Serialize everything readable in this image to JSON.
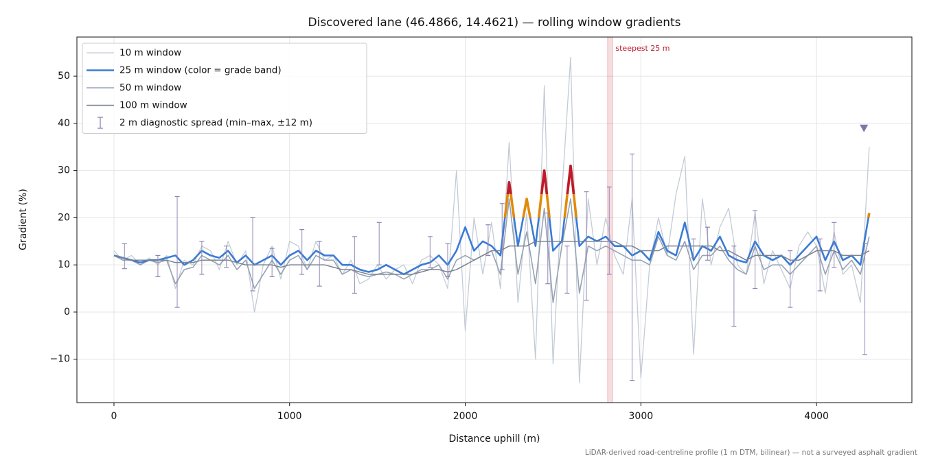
{
  "chart_data": {
    "type": "line",
    "title": "Discovered lane (46.4866, 14.4621) — rolling window gradients",
    "x_label": "Distance uphill (m)",
    "y_label": "Gradient (%)",
    "footnote": "LiDAR-derived road-centreline profile (1 m DTM, bilinear) — not a surveyed asphalt gradient",
    "xlim": [
      -211,
      4543
    ],
    "ylim": [
      -19.2,
      58.3
    ],
    "xticks": [
      0,
      1000,
      2000,
      3000,
      4000
    ],
    "yticks": [
      {
        "value": -10,
        "label": "−10"
      },
      0,
      10,
      20,
      30,
      40,
      50
    ],
    "grid": true,
    "legend": "upper left",
    "x": [
      0,
      50,
      100,
      150,
      200,
      250,
      300,
      350,
      400,
      450,
      500,
      550,
      600,
      650,
      700,
      750,
      800,
      850,
      900,
      950,
      1000,
      1050,
      1100,
      1150,
      1200,
      1250,
      1300,
      1350,
      1400,
      1450,
      1500,
      1550,
      1600,
      1650,
      1700,
      1750,
      1800,
      1850,
      1900,
      1950,
      2000,
      2050,
      2100,
      2150,
      2200,
      2250,
      2300,
      2350,
      2400,
      2450,
      2500,
      2550,
      2600,
      2650,
      2700,
      2750,
      2800,
      2850,
      2900,
      2950,
      3000,
      3050,
      3100,
      3150,
      3200,
      3250,
      3300,
      3350,
      3400,
      3450,
      3500,
      3550,
      3600,
      3650,
      3700,
      3750,
      3800,
      3850,
      3900,
      3950,
      4000,
      4050,
      4100,
      4150,
      4200,
      4250,
      4300
    ],
    "series": [
      {
        "name": "10 m window",
        "color": "#c3cbd6",
        "values": [
          13,
          11,
          12,
          10,
          11.5,
          10,
          12,
          5,
          11,
          10,
          14,
          13,
          9,
          15,
          10,
          13,
          0,
          10,
          14,
          7,
          15,
          14,
          9,
          15,
          11,
          12,
          8,
          11,
          6,
          7,
          10,
          7,
          9,
          10,
          6,
          11,
          12,
          10,
          5,
          30,
          -4,
          20,
          8,
          19,
          5,
          36,
          2,
          21,
          -10,
          48,
          -11,
          25,
          54,
          -15,
          24,
          10,
          20,
          12,
          8,
          24,
          -14,
          10,
          20,
          12,
          25,
          33,
          -9,
          24,
          10,
          18,
          22,
          10,
          8,
          21,
          6,
          13,
          9,
          5,
          14,
          17,
          14,
          4,
          17,
          8,
          10,
          2,
          35
        ]
      },
      {
        "name": "25 m window (color = grade band)",
        "color": "#3a7bd5",
        "values": [
          12,
          11.5,
          11,
          10.5,
          11,
          11,
          11.5,
          12,
          10,
          11,
          13,
          12,
          11.5,
          13,
          10.5,
          12,
          10,
          11,
          12,
          10,
          12,
          13,
          11,
          13,
          12,
          12,
          10,
          10,
          9,
          8.5,
          9,
          10,
          9,
          8,
          9,
          10,
          10.5,
          12,
          10,
          13,
          18,
          13,
          15,
          14,
          12,
          27.5,
          14,
          24,
          14,
          30,
          13,
          15,
          31,
          14,
          16,
          15,
          16,
          14,
          14,
          12,
          13,
          11,
          17,
          13,
          12,
          19,
          11,
          14,
          13,
          16,
          12,
          11,
          10.5,
          15,
          12,
          11,
          12,
          10,
          12,
          14,
          16,
          11,
          15,
          11,
          12,
          10,
          21
        ]
      },
      {
        "name": "50 m window",
        "color": "#97a3b3",
        "values": [
          12,
          11,
          11,
          10,
          11,
          10.5,
          11,
          6,
          9,
          9.5,
          12,
          11,
          10,
          12,
          9,
          11,
          5,
          8,
          11,
          8,
          11,
          12,
          9,
          12,
          11,
          11,
          8,
          9,
          8,
          7.5,
          8,
          8.5,
          8,
          7,
          8,
          9,
          9,
          10,
          7,
          11,
          12,
          11,
          12,
          13,
          8,
          24,
          8,
          17,
          6,
          22,
          2,
          14,
          24,
          4,
          14,
          13,
          14,
          13,
          12,
          11,
          11,
          10,
          16,
          12,
          11,
          15,
          9,
          12,
          12,
          14,
          11,
          9,
          8,
          14,
          9,
          10,
          10,
          8,
          10,
          12,
          14,
          8,
          13,
          9,
          11,
          8,
          16
        ]
      },
      {
        "name": "100 m window",
        "color": "#7a8290",
        "values": [
          12,
          11.5,
          11,
          11,
          11,
          11,
          11,
          10.5,
          10.5,
          10.5,
          11,
          11,
          11,
          11,
          10.5,
          10,
          10,
          10,
          10,
          9.5,
          10,
          10,
          10,
          10,
          10,
          9.5,
          9,
          9,
          8.5,
          8,
          8,
          8,
          8,
          8,
          8,
          8.5,
          9,
          9,
          8.5,
          9,
          10,
          11,
          12,
          13,
          13,
          14,
          14,
          14,
          15,
          15,
          15,
          15,
          15,
          15,
          15,
          15,
          15,
          15,
          14,
          14,
          13,
          13,
          13,
          14,
          14,
          14,
          14,
          14,
          14,
          13,
          13,
          12,
          11,
          12,
          12,
          12,
          12,
          11,
          11,
          12,
          13,
          13,
          13,
          12,
          12,
          12,
          13
        ]
      }
    ],
    "grade_bands": [
      {
        "min": 20,
        "color": "#e08a0b"
      },
      {
        "min": 25,
        "color": "#c0192b"
      }
    ],
    "spread": {
      "name": "2 m diagnostic spread (min–max, ±12 m)",
      "color": "#8d84b3",
      "x": [
        60,
        250,
        360,
        500,
        640,
        790,
        900,
        1070,
        1170,
        1370,
        1510,
        1800,
        1900,
        2130,
        2210,
        2470,
        2580,
        2690,
        2820,
        2950,
        3300,
        3380,
        3530,
        3650,
        3850,
        4020,
        4100,
        4275
      ],
      "low": [
        9.2,
        7.5,
        1,
        8,
        9.5,
        4.5,
        7.5,
        8,
        5.5,
        4,
        10,
        9.5,
        7.5,
        12,
        9,
        6,
        4,
        2.5,
        8,
        -14.5,
        11.5,
        11,
        -3,
        5,
        1,
        4.5,
        9.5,
        -9
      ],
      "high": [
        14.5,
        12,
        24.5,
        15,
        14,
        20,
        13.5,
        17.5,
        15,
        16,
        19,
        16,
        14.5,
        18.5,
        23,
        21,
        14,
        25.5,
        26.5,
        33.5,
        15.5,
        18,
        14,
        21.5,
        13,
        15.5,
        19,
        14.5
      ]
    },
    "highlight": {
      "x": [
        2810,
        2840
      ],
      "label": "steepest 25 m",
      "color": "#c0192b"
    },
    "marker": {
      "x": 4270,
      "y": 39,
      "color": "#8174ad"
    }
  }
}
